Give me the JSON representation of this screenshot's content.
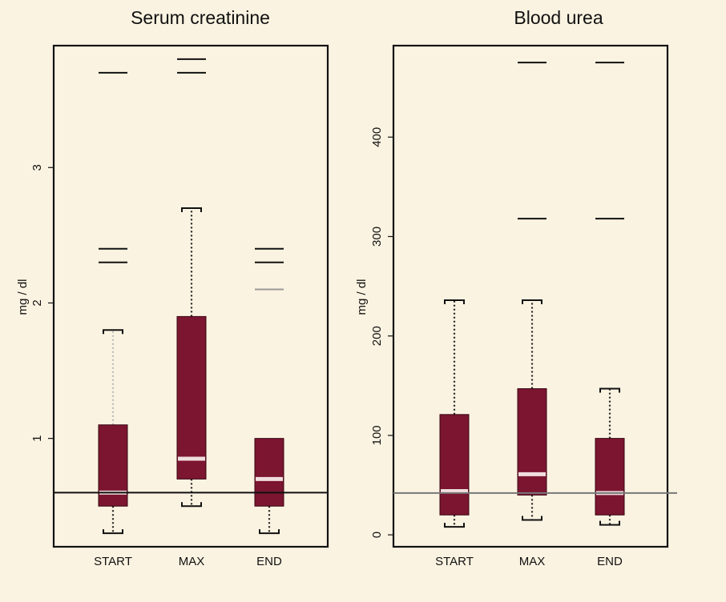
{
  "colors": {
    "background": "#fbf3e1",
    "box_fill": "#7b1530",
    "median": "#f0dede",
    "reference_line": "#111111",
    "outlier": "#111111",
    "light_outlier": "#9a9a9a"
  },
  "chart_data": [
    {
      "type": "box",
      "title": "Serum creatinine",
      "xlabel": "",
      "ylabel": "mg / dl",
      "categories": [
        "START",
        "MAX",
        "END"
      ],
      "yticks": [
        1,
        2,
        3
      ],
      "ylim": [
        0.2,
        3.9
      ],
      "reference_line": 0.6,
      "boxes": [
        {
          "category": "START",
          "whisker_low": 0.3,
          "q1": 0.5,
          "median": 0.6,
          "q3": 1.1,
          "whisker_high": 1.8,
          "outliers": [
            2.3,
            2.4,
            3.7
          ]
        },
        {
          "category": "MAX",
          "whisker_low": 0.5,
          "q1": 0.7,
          "median": 0.85,
          "q3": 1.9,
          "whisker_high": 2.7,
          "outliers": [
            3.7,
            3.8
          ]
        },
        {
          "category": "END",
          "whisker_low": 0.3,
          "q1": 0.5,
          "median": 0.7,
          "q3": 1.0,
          "whisker_high": null,
          "outliers": [
            2.1,
            2.3,
            2.4
          ]
        }
      ]
    },
    {
      "type": "box",
      "title": "Blood urea",
      "xlabel": "",
      "ylabel": "mg / dl",
      "categories": [
        "START",
        "MAX",
        "END"
      ],
      "yticks": [
        0,
        100,
        200,
        300,
        400
      ],
      "ylim": [
        -12,
        492
      ],
      "reference_line": 42,
      "boxes": [
        {
          "category": "START",
          "whisker_low": 8,
          "q1": 20,
          "median": 44,
          "q3": 121,
          "whisker_high": 236,
          "outliers": []
        },
        {
          "category": "MAX",
          "whisker_low": 15,
          "q1": 40,
          "median": 61,
          "q3": 147,
          "whisker_high": 236,
          "outliers": [
            318,
            475
          ]
        },
        {
          "category": "END",
          "whisker_low": 10,
          "q1": 20,
          "median": 42,
          "q3": 97,
          "whisker_high": 147,
          "outliers": [
            318,
            475
          ]
        }
      ]
    }
  ]
}
